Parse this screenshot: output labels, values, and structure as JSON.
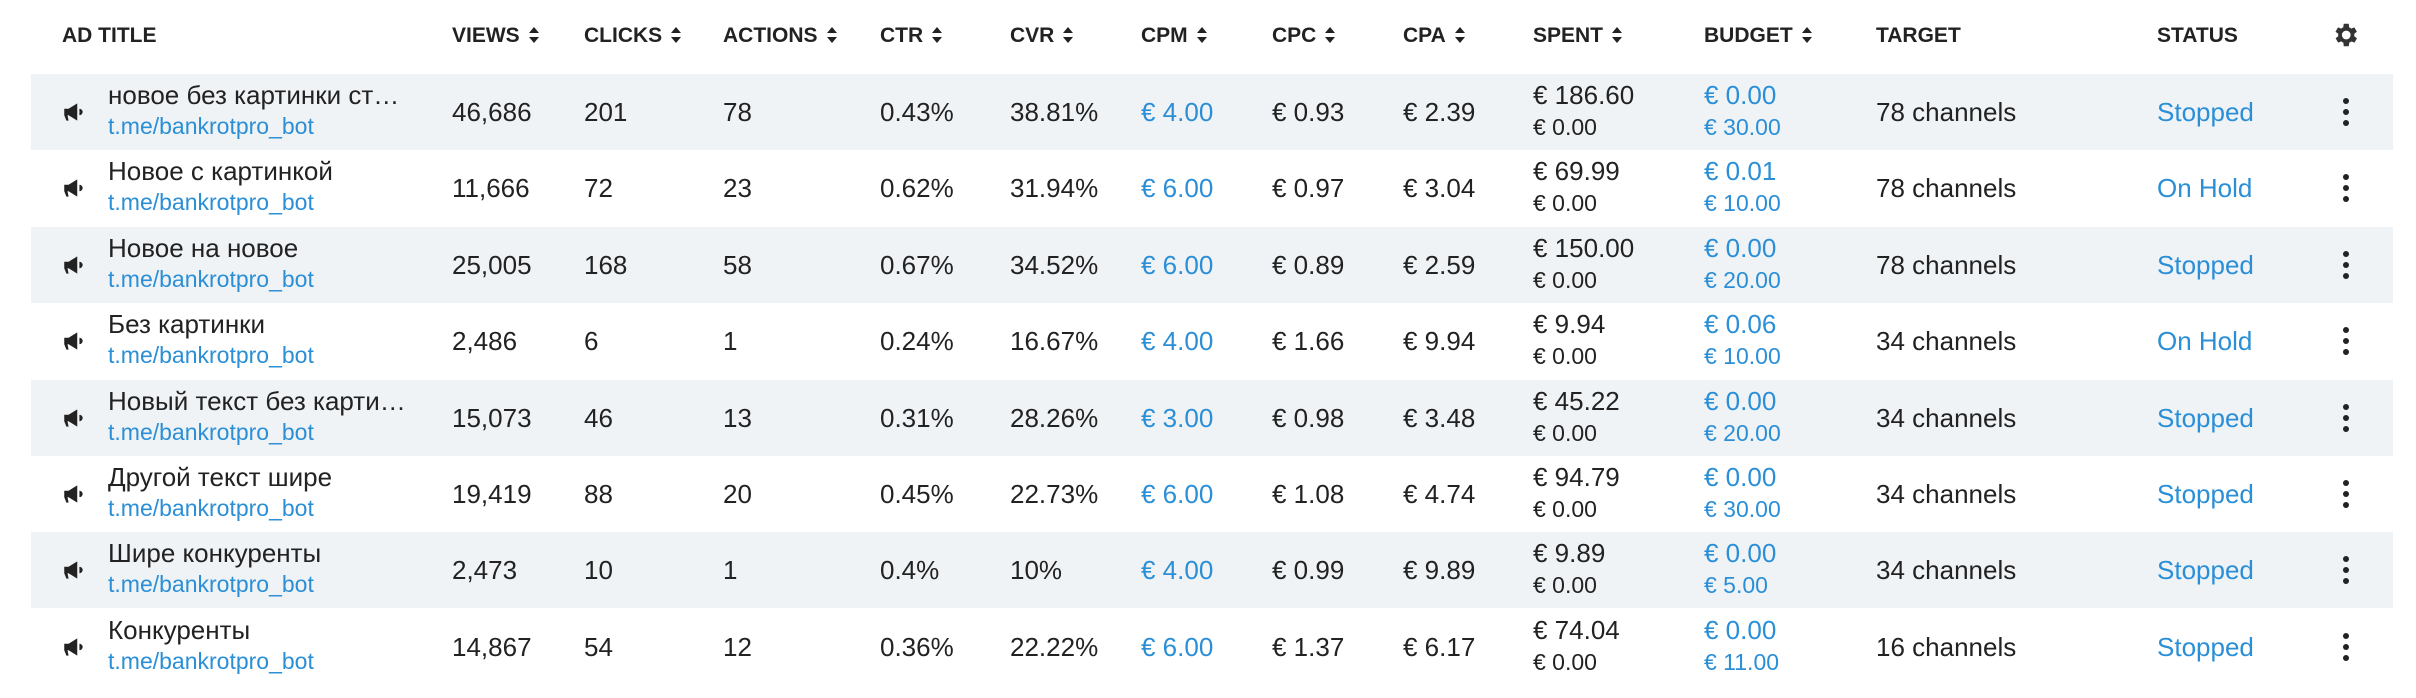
{
  "table": {
    "columns": [
      "AD TITLE",
      "VIEWS",
      "CLICKS",
      "ACTIONS",
      "CTR",
      "CVR",
      "CPM",
      "CPC",
      "CPA",
      "SPENT",
      "BUDGET",
      "TARGET",
      "STATUS"
    ],
    "rows": [
      {
        "title": "новое без картинки ст…",
        "link": "t.me/bankrotpro_bot",
        "views": "46,686",
        "clicks": "201",
        "actions": "78",
        "ctr": "0.43%",
        "cvr": "38.81%",
        "cpm": "€ 4.00",
        "cpc": "€ 0.93",
        "cpa": "€ 2.39",
        "spent": [
          "€ 186.60",
          "€ 0.00"
        ],
        "budget": [
          "€ 0.00",
          "€ 30.00"
        ],
        "target": "78 channels",
        "status": "Stopped"
      },
      {
        "title": "Новое с картинкой",
        "link": "t.me/bankrotpro_bot",
        "views": "11,666",
        "clicks": "72",
        "actions": "23",
        "ctr": "0.62%",
        "cvr": "31.94%",
        "cpm": "€ 6.00",
        "cpc": "€ 0.97",
        "cpa": "€ 3.04",
        "spent": [
          "€ 69.99",
          "€ 0.00"
        ],
        "budget": [
          "€ 0.01",
          "€ 10.00"
        ],
        "target": "78 channels",
        "status": "On Hold"
      },
      {
        "title": "Новое на новое",
        "link": "t.me/bankrotpro_bot",
        "views": "25,005",
        "clicks": "168",
        "actions": "58",
        "ctr": "0.67%",
        "cvr": "34.52%",
        "cpm": "€ 6.00",
        "cpc": "€ 0.89",
        "cpa": "€ 2.59",
        "spent": [
          "€ 150.00",
          "€ 0.00"
        ],
        "budget": [
          "€ 0.00",
          "€ 20.00"
        ],
        "target": "78 channels",
        "status": "Stopped"
      },
      {
        "title": "Без картинки",
        "link": "t.me/bankrotpro_bot",
        "views": "2,486",
        "clicks": "6",
        "actions": "1",
        "ctr": "0.24%",
        "cvr": "16.67%",
        "cpm": "€ 4.00",
        "cpc": "€ 1.66",
        "cpa": "€ 9.94",
        "spent": [
          "€ 9.94",
          "€ 0.00"
        ],
        "budget": [
          "€ 0.06",
          "€ 10.00"
        ],
        "target": "34 channels",
        "status": "On Hold"
      },
      {
        "title": "Новый текст без карти…",
        "link": "t.me/bankrotpro_bot",
        "views": "15,073",
        "clicks": "46",
        "actions": "13",
        "ctr": "0.31%",
        "cvr": "28.26%",
        "cpm": "€ 3.00",
        "cpc": "€ 0.98",
        "cpa": "€ 3.48",
        "spent": [
          "€ 45.22",
          "€ 0.00"
        ],
        "budget": [
          "€ 0.00",
          "€ 20.00"
        ],
        "target": "34 channels",
        "status": "Stopped"
      },
      {
        "title": "Другой текст шире",
        "link": "t.me/bankrotpro_bot",
        "views": "19,419",
        "clicks": "88",
        "actions": "20",
        "ctr": "0.45%",
        "cvr": "22.73%",
        "cpm": "€ 6.00",
        "cpc": "€ 1.08",
        "cpa": "€ 4.74",
        "spent": [
          "€ 94.79",
          "€ 0.00"
        ],
        "budget": [
          "€ 0.00",
          "€ 30.00"
        ],
        "target": "34 channels",
        "status": "Stopped"
      },
      {
        "title": "Шире конкуренты",
        "link": "t.me/bankrotpro_bot",
        "views": "2,473",
        "clicks": "10",
        "actions": "1",
        "ctr": "0.4%",
        "cvr": "10%",
        "cpm": "€ 4.00",
        "cpc": "€ 0.99",
        "cpa": "€ 9.89",
        "spent": [
          "€ 9.89",
          "€ 0.00"
        ],
        "budget": [
          "€ 0.00",
          "€ 5.00"
        ],
        "target": "34 channels",
        "status": "Stopped"
      },
      {
        "title": "Конкуренты",
        "link": "t.me/bankrotpro_bot",
        "views": "14,867",
        "clicks": "54",
        "actions": "12",
        "ctr": "0.36%",
        "cvr": "22.22%",
        "cpm": "€ 6.00",
        "cpc": "€ 1.37",
        "cpa": "€ 6.17",
        "spent": [
          "€ 74.04",
          "€ 0.00"
        ],
        "budget": [
          "€ 0.00",
          "€ 11.00"
        ],
        "target": "16 channels",
        "status": "Stopped"
      }
    ]
  }
}
